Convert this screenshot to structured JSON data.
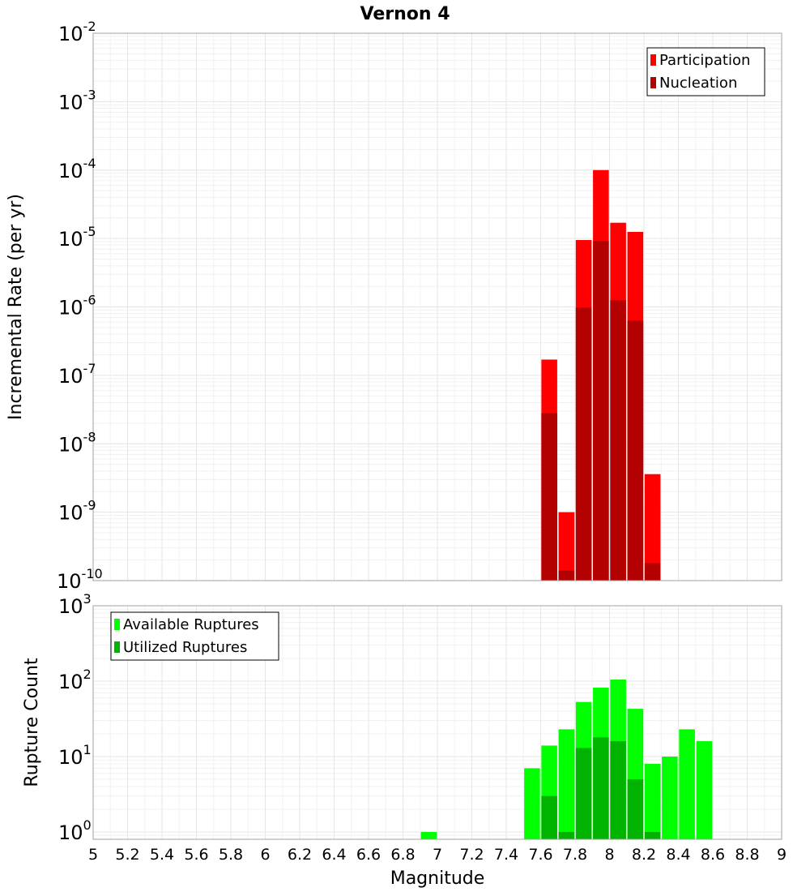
{
  "chart_data": {
    "type": "bar",
    "title": "Vernon 4",
    "xlabel": "Magnitude",
    "xlim": [
      5,
      9
    ],
    "x_ticks": [
      "5",
      "5.2",
      "5.4",
      "5.6",
      "5.8",
      "6",
      "6.2",
      "6.4",
      "6.6",
      "6.8",
      "7",
      "7.2",
      "7.4",
      "7.6",
      "7.8",
      "8",
      "8.2",
      "8.4",
      "8.6",
      "8.8",
      "9"
    ],
    "grid": true,
    "panels": [
      {
        "ylabel": "Incremental Rate (per yr)",
        "yscale": "log",
        "ylim": [
          1e-10,
          0.01
        ],
        "y_ticks": [
          {
            "base": "10",
            "exp": "-2"
          },
          {
            "base": "10",
            "exp": "-3"
          },
          {
            "base": "10",
            "exp": "-4"
          },
          {
            "base": "10",
            "exp": "-5"
          },
          {
            "base": "10",
            "exp": "-6"
          },
          {
            "base": "10",
            "exp": "-7"
          },
          {
            "base": "10",
            "exp": "-8"
          },
          {
            "base": "10",
            "exp": "-9"
          },
          {
            "base": "10",
            "exp": "-10"
          }
        ],
        "legend_position": "top-right",
        "series": [
          {
            "name": "Participation",
            "color": "#ff0000",
            "x": [
              7.65,
              7.75,
              7.85,
              7.95,
              8.05,
              8.15,
              8.25
            ],
            "values": [
              1.7e-07,
              1e-09,
              9.5e-06,
              0.0001,
              1.7e-05,
              1.25e-05,
              3.6e-09
            ]
          },
          {
            "name": "Nucleation",
            "color": "#b30000",
            "x": [
              7.65,
              7.75,
              7.85,
              7.95,
              8.05,
              8.15,
              8.25
            ],
            "values": [
              2.8e-08,
              1.4e-10,
              9.8e-07,
              9.2e-06,
              1.25e-06,
              6.3e-07,
              1.8e-10
            ]
          }
        ]
      },
      {
        "ylabel": "Rupture Count",
        "yscale": "log",
        "ylim": [
          0.8,
          1000
        ],
        "y_ticks": [
          {
            "base": "10",
            "exp": "3"
          },
          {
            "base": "10",
            "exp": "2"
          },
          {
            "base": "10",
            "exp": "1"
          },
          {
            "base": "10",
            "exp": "0"
          }
        ],
        "legend_position": "top-left",
        "series": [
          {
            "name": "Available Ruptures",
            "color": "#00ff00",
            "x": [
              6.95,
              7.55,
              7.65,
              7.75,
              7.85,
              7.95,
              8.05,
              8.15,
              8.25,
              8.35,
              8.45,
              8.55
            ],
            "values": [
              1,
              7,
              14,
              23,
              53,
              82,
              105,
              43,
              8,
              10,
              23,
              16
            ]
          },
          {
            "name": "Utilized Ruptures",
            "color": "#00b300",
            "x": [
              7.65,
              7.75,
              7.85,
              7.95,
              8.05,
              8.15,
              8.25
            ],
            "values": [
              3,
              1,
              13,
              18,
              16,
              5,
              1
            ]
          }
        ]
      }
    ]
  }
}
